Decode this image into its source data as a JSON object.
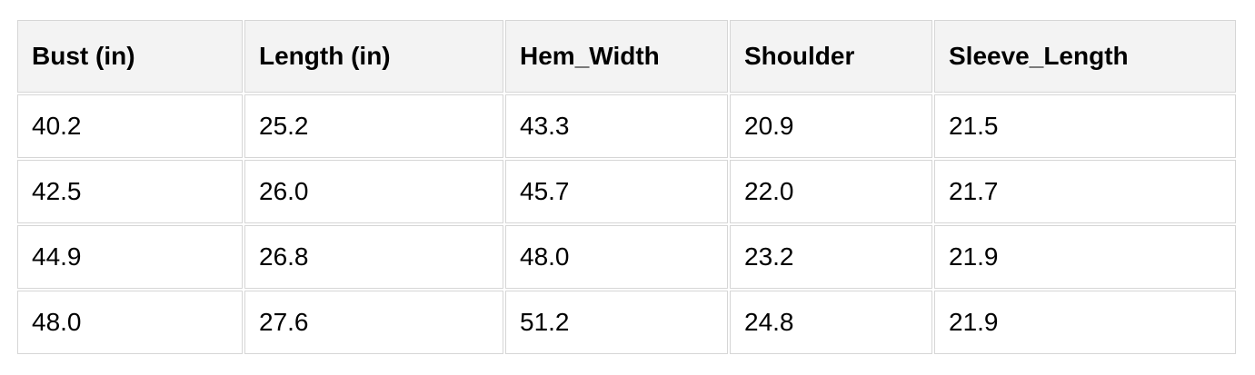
{
  "chart_data": {
    "type": "table",
    "columns": [
      "Bust (in)",
      "Length (in)",
      "Hem_Width",
      "Shoulder",
      "Sleeve_Length"
    ],
    "rows": [
      [
        "40.2",
        "25.2",
        "43.3",
        "20.9",
        "21.5"
      ],
      [
        "42.5",
        "26.0",
        "45.7",
        "22.0",
        "21.7"
      ],
      [
        "44.9",
        "26.8",
        "48.0",
        "23.2",
        "21.9"
      ],
      [
        "48.0",
        "27.6",
        "51.2",
        "24.8",
        "21.9"
      ]
    ],
    "title": "",
    "layout_hints": {
      "header_position": "top",
      "striping": "none",
      "text_align": "left"
    }
  },
  "colors": {
    "header_background": "#f3f3f3",
    "cell_background": "#ffffff",
    "border": "#d6d6d6",
    "text": "#000000",
    "page_background": "#ffffff"
  }
}
